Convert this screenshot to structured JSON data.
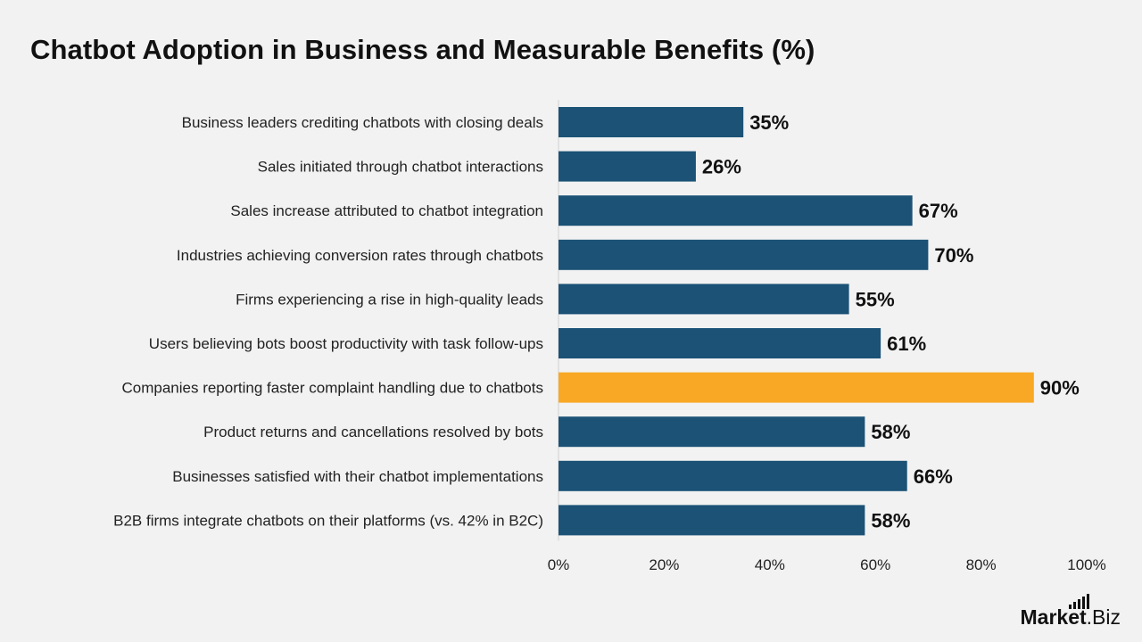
{
  "chart_data": {
    "type": "bar",
    "orientation": "horizontal",
    "title": "Chatbot Adoption in Business and Measurable Benefits (%)",
    "categories": [
      "Business leaders crediting chatbots with closing deals",
      "Sales initiated through chatbot interactions",
      "Sales increase attributed to chatbot integration",
      "Industries achieving conversion rates through chatbots",
      "Firms experiencing a rise in high-quality leads",
      "Users believing bots boost productivity with task follow-ups",
      "Companies reporting faster complaint handling due to chatbots",
      "Product returns and cancellations resolved by bots",
      "Businesses satisfied with their chatbot implementations",
      "B2B firms integrate chatbots on their platforms (vs. 42% in B2C)"
    ],
    "values": [
      35,
      26,
      67,
      70,
      55,
      61,
      90,
      58,
      66,
      58
    ],
    "value_labels": [
      "35%",
      "26%",
      "67%",
      "70%",
      "55%",
      "61%",
      "90%",
      "58%",
      "66%",
      "58%"
    ],
    "highlight_index": 6,
    "xlim": [
      0,
      100
    ],
    "x_ticks": [
      0,
      20,
      40,
      60,
      80,
      100
    ],
    "x_tick_labels": [
      "0%",
      "20%",
      "40%",
      "60%",
      "80%",
      "100%"
    ],
    "grid": false,
    "legend": "none",
    "colors": {
      "bar": "#1b5276",
      "highlight": "#f9a825",
      "axis": "#d0d0d0",
      "background": "#f2f2f2"
    }
  },
  "branding": {
    "logo_market": "Market",
    "logo_biz": ".Biz"
  }
}
